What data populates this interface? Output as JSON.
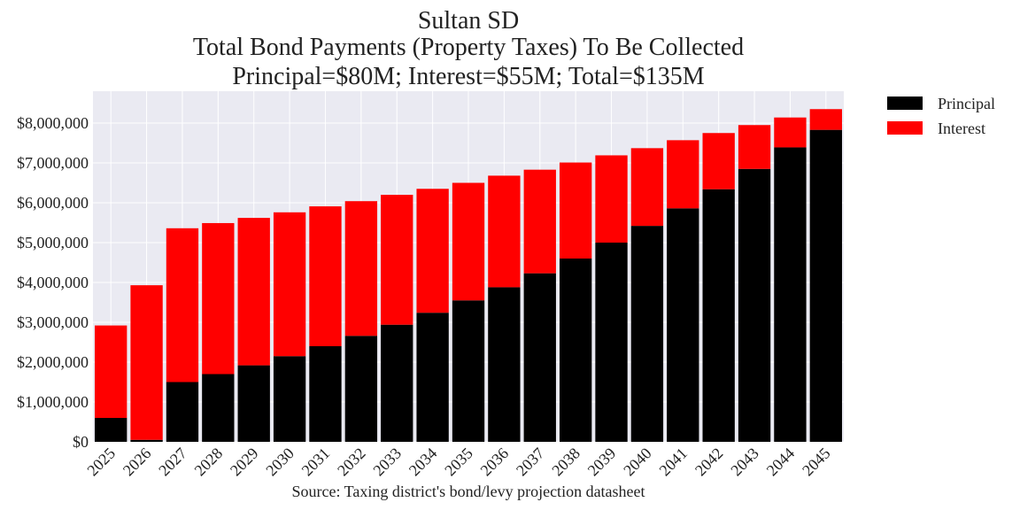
{
  "chart_data": {
    "type": "bar",
    "stacked": true,
    "title_lines": [
      "Sultan SD",
      "Total Bond Payments (Property Taxes) To Be Collected",
      "Principal=$80M; Interest=$55M; Total=$135M"
    ],
    "xlabel": "Source: Taxing district's bond/levy projection datasheet",
    "ylabel": "",
    "categories": [
      "2025",
      "2026",
      "2027",
      "2028",
      "2029",
      "2030",
      "2031",
      "2032",
      "2033",
      "2034",
      "2035",
      "2036",
      "2037",
      "2038",
      "2039",
      "2040",
      "2041",
      "2042",
      "2043",
      "2044",
      "2045"
    ],
    "series": [
      {
        "name": "Principal",
        "color": "#000000",
        "values": [
          600000,
          50000,
          1500000,
          1700000,
          1920000,
          2150000,
          2400000,
          2660000,
          2940000,
          3240000,
          3550000,
          3880000,
          4230000,
          4600000,
          5000000,
          5420000,
          5860000,
          6340000,
          6850000,
          7390000,
          7830000
        ]
      },
      {
        "name": "Interest",
        "color": "#ff0000",
        "values": [
          2320000,
          3880000,
          3860000,
          3790000,
          3700000,
          3610000,
          3510000,
          3380000,
          3260000,
          3110000,
          2950000,
          2800000,
          2600000,
          2410000,
          2190000,
          1950000,
          1710000,
          1410000,
          1100000,
          750000,
          520000
        ]
      }
    ],
    "ylim": [
      0,
      8800000
    ],
    "yticks": [
      0,
      1000000,
      2000000,
      3000000,
      4000000,
      5000000,
      6000000,
      7000000,
      8000000
    ],
    "ytick_labels": [
      "$0",
      "$1,000,000",
      "$2,000,000",
      "$3,000,000",
      "$4,000,000",
      "$5,000,000",
      "$6,000,000",
      "$7,000,000",
      "$8,000,000"
    ],
    "grid": true,
    "legend_position": "outside-top-right",
    "background": "#eaeaf2"
  }
}
